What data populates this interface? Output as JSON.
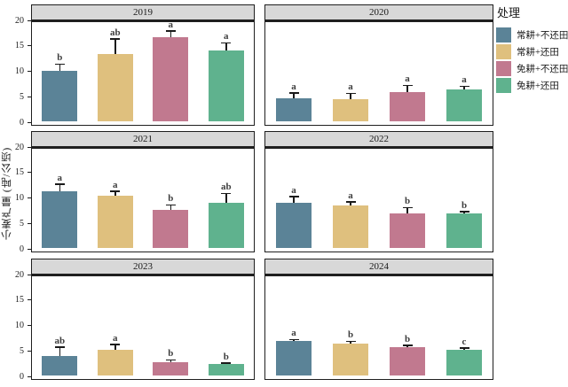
{
  "axis": {
    "ticks": [
      0,
      5,
      10,
      15,
      20
    ],
    "ylim": [
      0,
      20
    ]
  },
  "legend": {
    "title": "处理",
    "items": [
      {
        "label": "常耕+不还田",
        "color": "#5B8397"
      },
      {
        "label": "常耕+还田",
        "color": "#DFC07E"
      },
      {
        "label": "免耕+不还田",
        "color": "#C1798F"
      },
      {
        "label": "免耕+还田",
        "color": "#5FB28E"
      }
    ]
  },
  "chart_data": {
    "type": "bar",
    "ylabel": "小麦产量 (吨/公顷)",
    "ylim": [
      0,
      20
    ],
    "legend_position": "right",
    "grid": false,
    "groups": [
      "常耕+不还田",
      "常耕+还田",
      "免耕+不还田",
      "免耕+还田"
    ],
    "group_colors": [
      "#5B8397",
      "#DFC07E",
      "#C1798F",
      "#5FB28E"
    ],
    "facets": [
      {
        "label": "2019",
        "values": [
          10.0,
          13.2,
          16.5,
          14.0
        ],
        "err_top": [
          11.3,
          16.2,
          17.8,
          15.4
        ],
        "letters": [
          "b",
          "ab",
          "a",
          "a"
        ]
      },
      {
        "label": "2020",
        "values": [
          4.5,
          4.4,
          5.7,
          6.2
        ],
        "err_top": [
          5.6,
          5.5,
          7.1,
          6.9
        ],
        "letters": [
          "a",
          "a",
          "a",
          "a"
        ]
      },
      {
        "label": "2021",
        "values": [
          11.1,
          10.2,
          7.5,
          8.9
        ],
        "err_top": [
          12.6,
          11.2,
          8.5,
          10.7
        ],
        "letters": [
          "a",
          "a",
          "b",
          "ab"
        ]
      },
      {
        "label": "2022",
        "values": [
          8.9,
          8.4,
          6.8,
          6.7
        ],
        "err_top": [
          10.1,
          9.1,
          8.0,
          7.2
        ],
        "letters": [
          "a",
          "a",
          "b",
          "b"
        ]
      },
      {
        "label": "2023",
        "values": [
          3.8,
          5.0,
          2.6,
          2.2
        ],
        "err_top": [
          5.6,
          6.1,
          3.1,
          2.5
        ],
        "letters": [
          "ab",
          "a",
          "b",
          "b"
        ]
      },
      {
        "label": "2024",
        "values": [
          6.8,
          6.2,
          5.5,
          5.1
        ],
        "err_top": [
          7.1,
          6.7,
          6.0,
          5.4
        ],
        "letters": [
          "a",
          "b",
          "b",
          "c"
        ]
      }
    ]
  },
  "colors": {
    "strip_bg": "#d8d8d8",
    "panel_border": "#1f1f1f",
    "error_bar": "#1a1a1a"
  }
}
